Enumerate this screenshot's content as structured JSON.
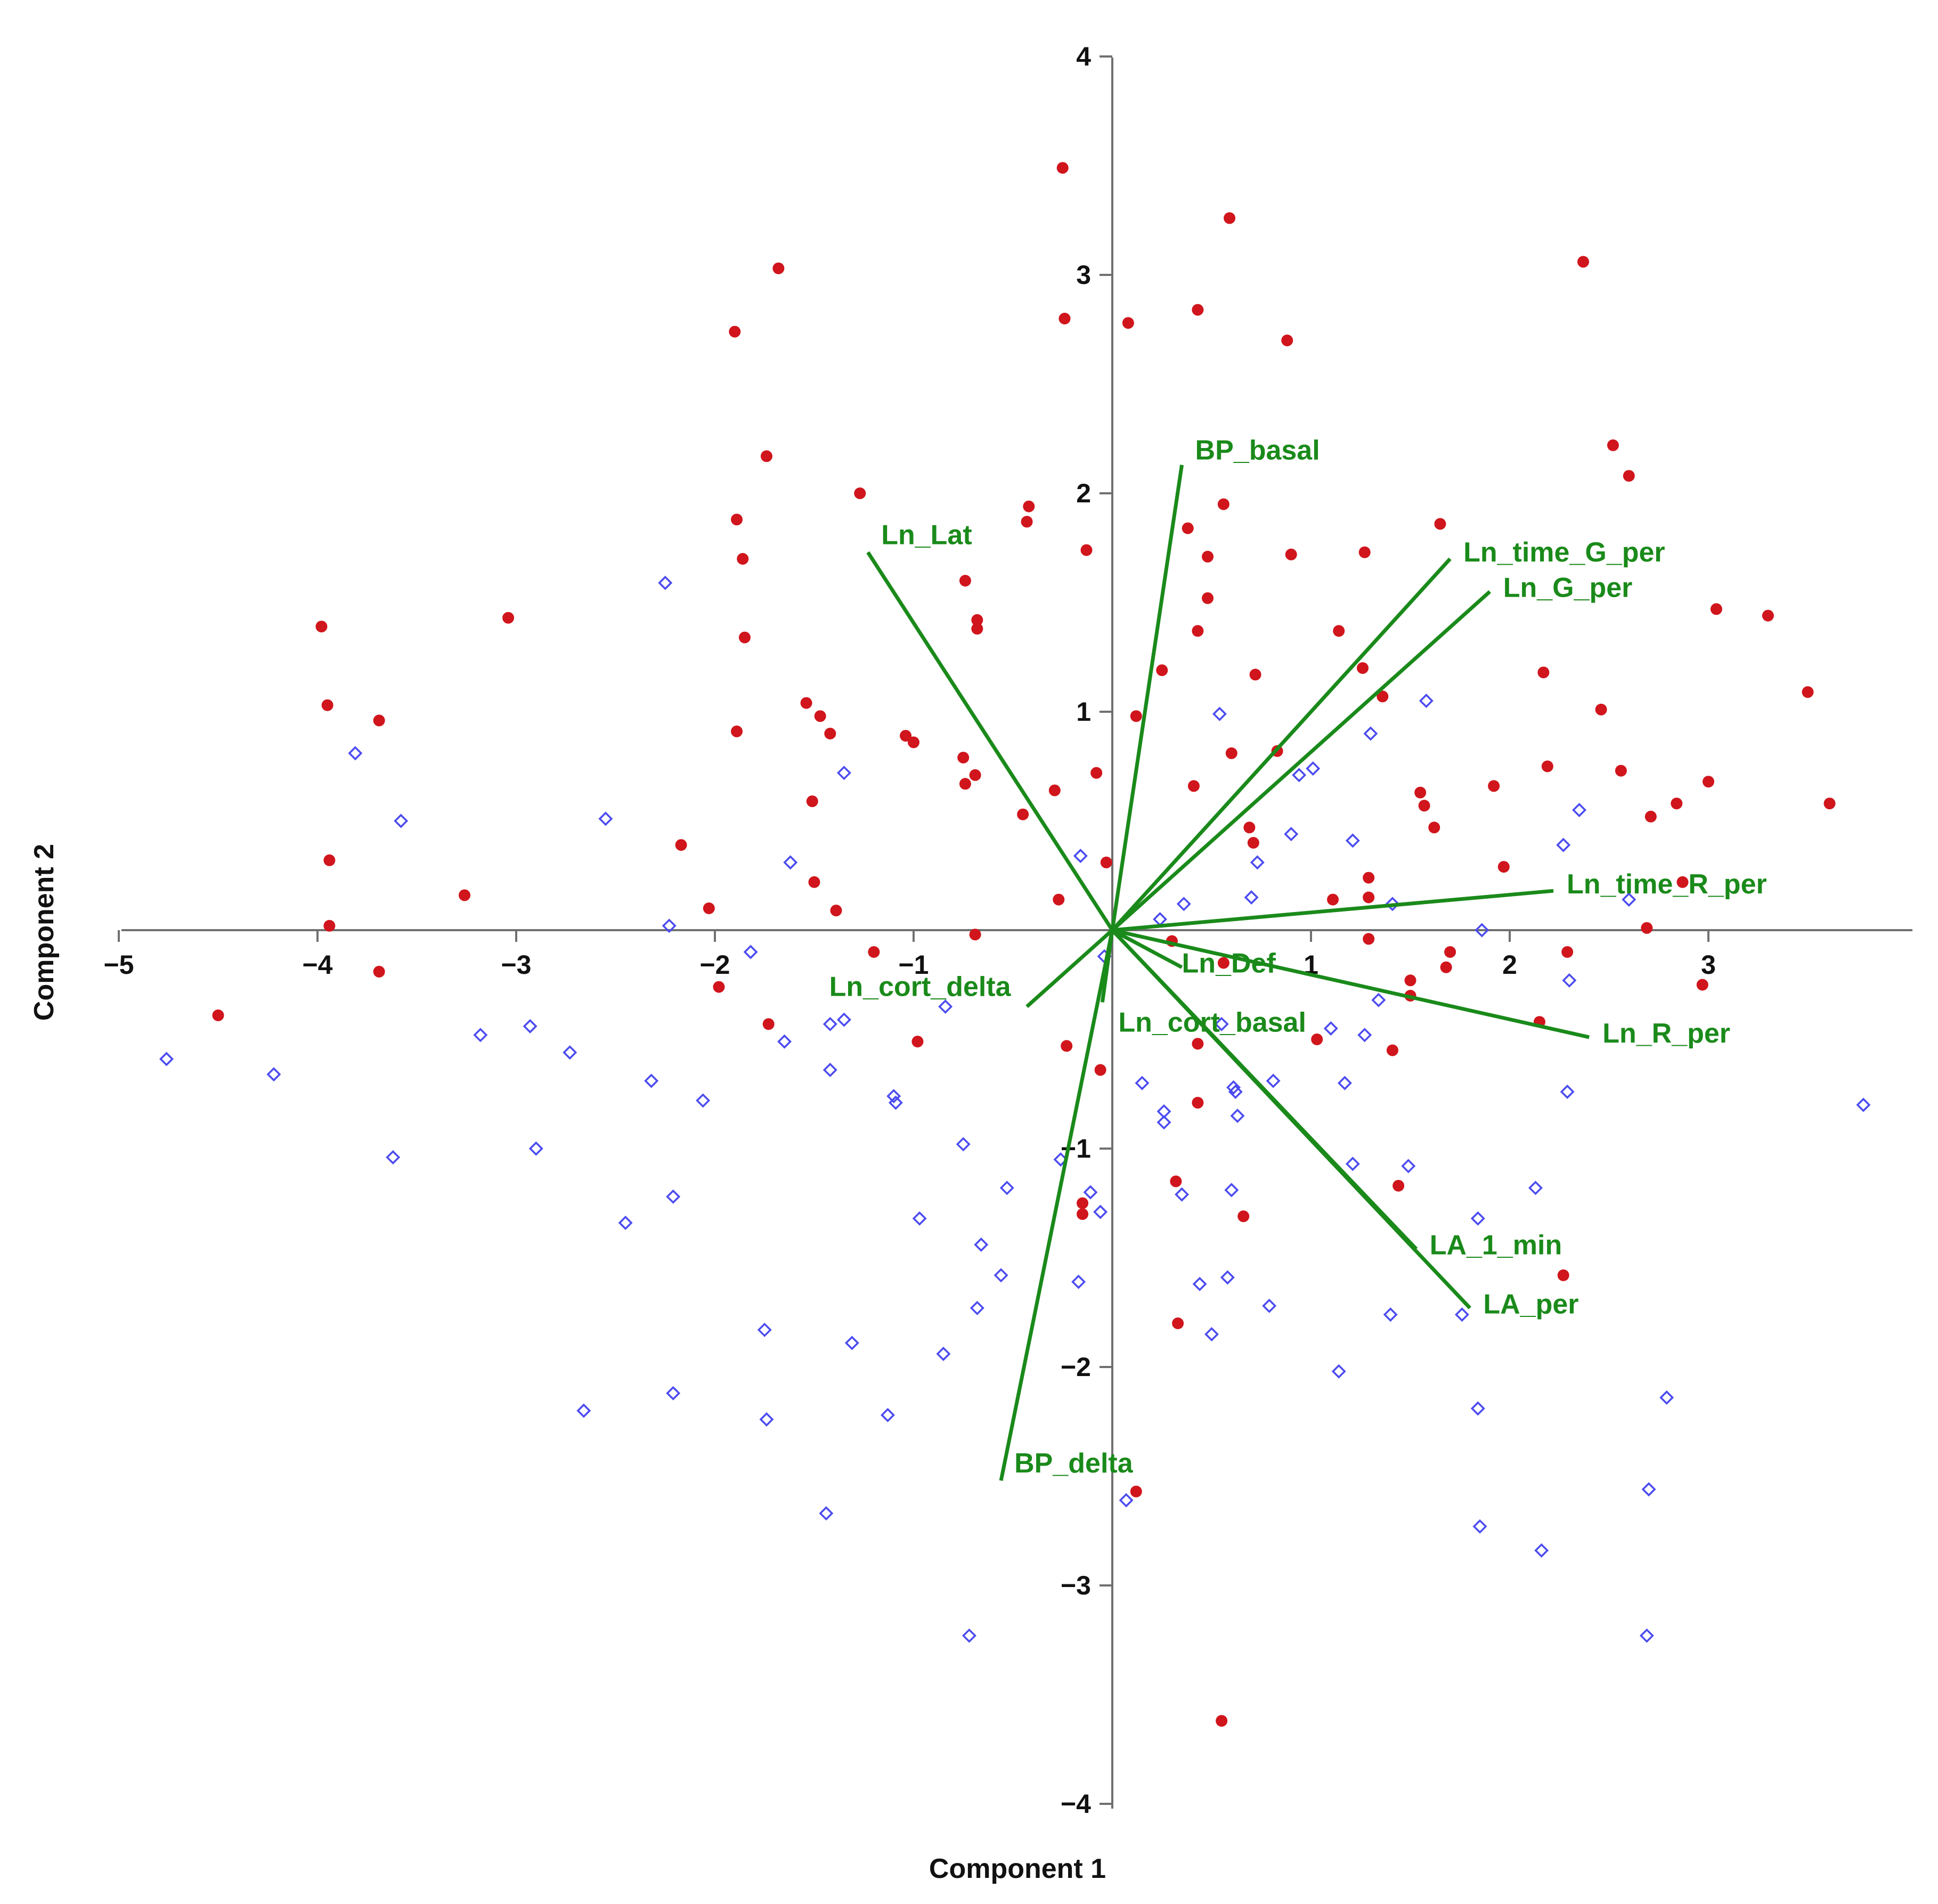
{
  "chart_data": {
    "type": "scatter",
    "xlabel": "Component 1",
    "ylabel": "Component 2",
    "xlim": [
      -5,
      4
    ],
    "ylim": [
      -4,
      4
    ],
    "xticks": [
      -5,
      -4,
      -3,
      -2,
      -1,
      1,
      2,
      3
    ],
    "yticks": [
      4,
      3,
      2,
      1,
      -1,
      -2,
      -3,
      -4
    ],
    "colors": {
      "red": "#d0151c",
      "blue": "#4b4bf0",
      "vector": "#1a8a1a",
      "axis": "#707070"
    },
    "vectors": [
      {
        "label": "BP_basal",
        "x": 0.35,
        "y": 2.13
      },
      {
        "label": "Ln_Lat",
        "x": -1.23,
        "y": 1.73
      },
      {
        "label": "Ln_time_G_per",
        "x": 1.7,
        "y": 1.7
      },
      {
        "label": "Ln_G_per",
        "x": 1.9,
        "y": 1.55
      },
      {
        "label": "Ln_time_R_per",
        "x": 2.22,
        "y": 0.18
      },
      {
        "label": "Ln_R_per",
        "x": 2.4,
        "y": -0.49
      },
      {
        "label": "Ln_Def",
        "x": 0.35,
        "y": -0.17
      },
      {
        "label": "Ln_cort_basal",
        "x": -0.05,
        "y": -0.33
      },
      {
        "label": "Ln_cort_delta",
        "x": -0.43,
        "y": -0.35
      },
      {
        "label": "LA_1_min",
        "x": 1.53,
        "y": -1.46
      },
      {
        "label": "LA_per",
        "x": 1.8,
        "y": -1.73
      },
      {
        "label": "BP_delta",
        "x": -0.56,
        "y": -2.52
      }
    ],
    "series": [
      {
        "marker": "filled-circle",
        "points": [
          [
            -4.5,
            -0.39
          ],
          [
            -3.98,
            1.39
          ],
          [
            -3.95,
            1.03
          ],
          [
            -3.94,
            0.32
          ],
          [
            -3.94,
            0.02
          ],
          [
            -3.69,
            0.96
          ],
          [
            -3.69,
            -0.19
          ],
          [
            -3.26,
            0.16
          ],
          [
            -3.04,
            1.43
          ],
          [
            -2.17,
            0.39
          ],
          [
            -2.03,
            0.1
          ],
          [
            -1.98,
            -0.26
          ],
          [
            -1.9,
            2.74
          ],
          [
            -1.89,
            1.88
          ],
          [
            -1.89,
            0.91
          ],
          [
            -1.86,
            1.7
          ],
          [
            -1.85,
            1.34
          ],
          [
            -1.74,
            2.17
          ],
          [
            -1.73,
            -0.43
          ],
          [
            -1.68,
            3.03
          ],
          [
            -1.54,
            1.04
          ],
          [
            -1.51,
            0.59
          ],
          [
            -1.5,
            0.22
          ],
          [
            -1.47,
            0.98
          ],
          [
            -1.42,
            0.9
          ],
          [
            -1.39,
            0.09
          ],
          [
            -1.27,
            2.0
          ],
          [
            -1.2,
            -0.1
          ],
          [
            -1.04,
            0.89
          ],
          [
            -1.0,
            0.86
          ],
          [
            -0.98,
            -0.51
          ],
          [
            -0.75,
            0.79
          ],
          [
            -0.74,
            0.67
          ],
          [
            -0.74,
            1.6
          ],
          [
            -0.69,
            0.71
          ],
          [
            -0.68,
            1.42
          ],
          [
            -0.68,
            1.38
          ],
          [
            -0.69,
            -0.02
          ],
          [
            -0.45,
            0.53
          ],
          [
            -0.43,
            1.87
          ],
          [
            -0.42,
            1.94
          ],
          [
            -0.29,
            0.64
          ],
          [
            -0.27,
            0.14
          ],
          [
            -0.23,
            -0.53
          ],
          [
            -0.24,
            2.8
          ],
          [
            -0.25,
            3.49
          ],
          [
            -0.15,
            -1.3
          ],
          [
            -0.15,
            -1.25
          ],
          [
            -0.13,
            1.74
          ],
          [
            -0.08,
            0.72
          ],
          [
            -0.06,
            -0.64
          ],
          [
            -0.03,
            0.31
          ],
          [
            0.08,
            2.78
          ],
          [
            0.12,
            0.98
          ],
          [
            0.25,
            1.19
          ],
          [
            0.3,
            -0.05
          ],
          [
            0.38,
            1.84
          ],
          [
            0.41,
            0.66
          ],
          [
            0.43,
            -0.79
          ],
          [
            0.32,
            -1.15
          ],
          [
            0.33,
            -1.8
          ],
          [
            0.43,
            -0.52
          ],
          [
            0.43,
            2.84
          ],
          [
            0.43,
            1.37
          ],
          [
            0.48,
            1.71
          ],
          [
            0.48,
            1.52
          ],
          [
            0.56,
            1.95
          ],
          [
            0.56,
            -0.15
          ],
          [
            0.59,
            3.26
          ],
          [
            0.6,
            0.81
          ],
          [
            0.66,
            -1.31
          ],
          [
            0.69,
            0.47
          ],
          [
            0.71,
            0.4
          ],
          [
            0.72,
            1.17
          ],
          [
            0.83,
            0.82
          ],
          [
            0.88,
            2.7
          ],
          [
            0.9,
            1.72
          ],
          [
            1.03,
            -0.5
          ],
          [
            1.11,
            0.14
          ],
          [
            1.14,
            1.37
          ],
          [
            1.26,
            1.2
          ],
          [
            1.27,
            1.73
          ],
          [
            1.29,
            0.24
          ],
          [
            1.29,
            0.15
          ],
          [
            1.29,
            -0.04
          ],
          [
            1.36,
            1.07
          ],
          [
            1.41,
            -0.55
          ],
          [
            1.44,
            -1.17
          ],
          [
            1.5,
            -0.3
          ],
          [
            1.5,
            -0.23
          ],
          [
            1.55,
            0.63
          ],
          [
            1.57,
            0.57
          ],
          [
            1.62,
            0.47
          ],
          [
            1.65,
            1.86
          ],
          [
            1.68,
            -0.17
          ],
          [
            1.7,
            -0.1
          ],
          [
            1.92,
            0.66
          ],
          [
            1.97,
            0.29
          ],
          [
            2.15,
            -0.42
          ],
          [
            2.17,
            1.18
          ],
          [
            2.19,
            0.75
          ],
          [
            2.27,
            -1.58
          ],
          [
            2.29,
            -0.1
          ],
          [
            2.46,
            1.01
          ],
          [
            2.52,
            2.22
          ],
          [
            2.56,
            0.73
          ],
          [
            2.6,
            2.08
          ],
          [
            2.69,
            0.01
          ],
          [
            2.71,
            0.52
          ],
          [
            2.84,
            0.58
          ],
          [
            2.87,
            0.22
          ],
          [
            3.0,
            0.68
          ],
          [
            3.04,
            1.47
          ],
          [
            2.97,
            -0.25
          ],
          [
            3.3,
            1.44
          ],
          [
            3.5,
            1.09
          ],
          [
            3.61,
            0.58
          ],
          [
            2.37,
            3.06
          ],
          [
            0.12,
            -2.57
          ],
          [
            0.55,
            -3.62
          ]
        ]
      },
      {
        "marker": "open-diamond",
        "points": [
          [
            -4.76,
            -0.59
          ],
          [
            -4.22,
            -0.66
          ],
          [
            -3.81,
            0.81
          ],
          [
            -3.62,
            -1.04
          ],
          [
            -3.58,
            0.5
          ],
          [
            -3.18,
            -0.48
          ],
          [
            -2.93,
            -0.44
          ],
          [
            -2.9,
            -1.0
          ],
          [
            -2.73,
            -0.56
          ],
          [
            -2.66,
            -2.2
          ],
          [
            -2.55,
            0.51
          ],
          [
            -2.45,
            -1.34
          ],
          [
            -2.32,
            -0.69
          ],
          [
            -2.25,
            1.59
          ],
          [
            -2.23,
            0.02
          ],
          [
            -2.21,
            -1.22
          ],
          [
            -2.21,
            -2.12
          ],
          [
            -2.06,
            -0.78
          ],
          [
            -1.82,
            -0.1
          ],
          [
            -1.75,
            -1.83
          ],
          [
            -1.74,
            -2.24
          ],
          [
            -1.65,
            -0.51
          ],
          [
            -1.62,
            0.31
          ],
          [
            -1.44,
            -2.67
          ],
          [
            -1.42,
            -0.64
          ],
          [
            -1.42,
            -0.43
          ],
          [
            -1.35,
            -0.41
          ],
          [
            -1.35,
            0.72
          ],
          [
            -1.31,
            -1.89
          ],
          [
            -1.13,
            -2.22
          ],
          [
            -1.09,
            -0.79
          ],
          [
            -1.1,
            -0.76
          ],
          [
            -0.97,
            -1.32
          ],
          [
            -0.84,
            -0.35
          ],
          [
            -0.85,
            -1.94
          ],
          [
            -0.75,
            -0.98
          ],
          [
            -0.72,
            -3.23
          ],
          [
            -0.68,
            -1.73
          ],
          [
            -0.66,
            -1.44
          ],
          [
            -0.56,
            -1.58
          ],
          [
            -0.53,
            -1.18
          ],
          [
            -0.26,
            -1.05
          ],
          [
            -0.16,
            0.34
          ],
          [
            -0.17,
            -1.61
          ],
          [
            -0.11,
            -1.2
          ],
          [
            -0.06,
            -1.29
          ],
          [
            -0.04,
            -0.12
          ],
          [
            0.07,
            -2.61
          ],
          [
            0.15,
            -0.7
          ],
          [
            0.24,
            0.05
          ],
          [
            0.26,
            -0.83
          ],
          [
            0.35,
            -1.21
          ],
          [
            0.26,
            -0.88
          ],
          [
            0.36,
            0.12
          ],
          [
            0.44,
            -1.62
          ],
          [
            0.5,
            -1.85
          ],
          [
            0.54,
            0.99
          ],
          [
            0.55,
            -0.43
          ],
          [
            0.58,
            -1.59
          ],
          [
            0.6,
            -1.19
          ],
          [
            0.61,
            -0.72
          ],
          [
            0.62,
            -0.74
          ],
          [
            0.63,
            -0.85
          ],
          [
            0.7,
            0.15
          ],
          [
            0.73,
            0.31
          ],
          [
            0.79,
            -1.72
          ],
          [
            0.81,
            -0.69
          ],
          [
            0.9,
            0.44
          ],
          [
            0.94,
            0.71
          ],
          [
            1.01,
            0.74
          ],
          [
            1.1,
            -0.45
          ],
          [
            1.14,
            -2.02
          ],
          [
            1.17,
            -0.7
          ],
          [
            1.21,
            -1.07
          ],
          [
            1.21,
            0.41
          ],
          [
            1.27,
            -0.48
          ],
          [
            1.3,
            0.9
          ],
          [
            1.34,
            -0.32
          ],
          [
            1.4,
            -1.76
          ],
          [
            1.41,
            0.12
          ],
          [
            1.49,
            -1.08
          ],
          [
            1.58,
            1.05
          ],
          [
            1.76,
            -1.76
          ],
          [
            1.84,
            -1.32
          ],
          [
            1.85,
            -2.73
          ],
          [
            1.84,
            -2.19
          ],
          [
            1.86,
            0.0
          ],
          [
            2.13,
            -1.18
          ],
          [
            2.16,
            -2.84
          ],
          [
            2.29,
            -0.74
          ],
          [
            2.27,
            0.39
          ],
          [
            2.3,
            -0.23
          ],
          [
            2.35,
            0.55
          ],
          [
            2.6,
            0.14
          ],
          [
            2.69,
            -3.23
          ],
          [
            2.7,
            -2.56
          ],
          [
            2.79,
            -2.14
          ],
          [
            3.78,
            -0.8
          ]
        ]
      }
    ]
  }
}
